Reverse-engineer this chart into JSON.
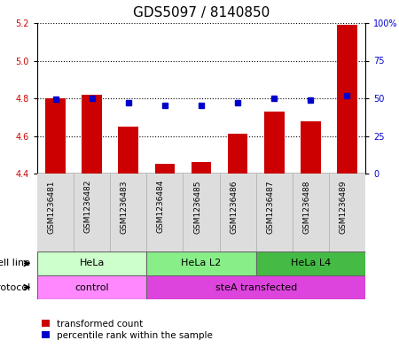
{
  "title": "GDS5097 / 8140850",
  "samples": [
    "GSM1236481",
    "GSM1236482",
    "GSM1236483",
    "GSM1236484",
    "GSM1236485",
    "GSM1236486",
    "GSM1236487",
    "GSM1236488",
    "GSM1236489"
  ],
  "red_values": [
    4.8,
    4.82,
    4.65,
    4.45,
    4.46,
    4.61,
    4.73,
    4.68,
    5.19
  ],
  "blue_values": [
    49.5,
    50.0,
    47.0,
    45.5,
    45.5,
    47.0,
    50.0,
    49.0,
    52.0
  ],
  "ylim_left": [
    4.4,
    5.2
  ],
  "ylim_right": [
    0,
    100
  ],
  "yticks_left": [
    4.4,
    4.6,
    4.8,
    5.0,
    5.2
  ],
  "yticks_right": [
    0,
    25,
    50,
    75,
    100
  ],
  "ytick_labels_right": [
    "0",
    "25",
    "50",
    "75",
    "100%"
  ],
  "red_color": "#cc0000",
  "blue_color": "#0000cc",
  "bar_width": 0.55,
  "cell_line_groups": [
    {
      "label": "HeLa",
      "start": 0,
      "end": 3,
      "color": "#ccffcc"
    },
    {
      "label": "HeLa L2",
      "start": 3,
      "end": 6,
      "color": "#88ee88"
    },
    {
      "label": "HeLa L4",
      "start": 6,
      "end": 9,
      "color": "#44bb44"
    }
  ],
  "protocol_groups": [
    {
      "label": "control",
      "start": 0,
      "end": 3,
      "color": "#ff88ff"
    },
    {
      "label": "steA transfected",
      "start": 3,
      "end": 9,
      "color": "#dd44dd"
    }
  ],
  "cell_line_label": "cell line",
  "protocol_label": "protocol",
  "legend_red": "transformed count",
  "legend_blue": "percentile rank within the sample",
  "background_color": "#ffffff",
  "grid_color": "#000000",
  "title_fontsize": 11,
  "tick_fontsize": 7,
  "sample_fontsize": 6.5,
  "annot_fontsize": 8,
  "legend_fontsize": 7.5
}
